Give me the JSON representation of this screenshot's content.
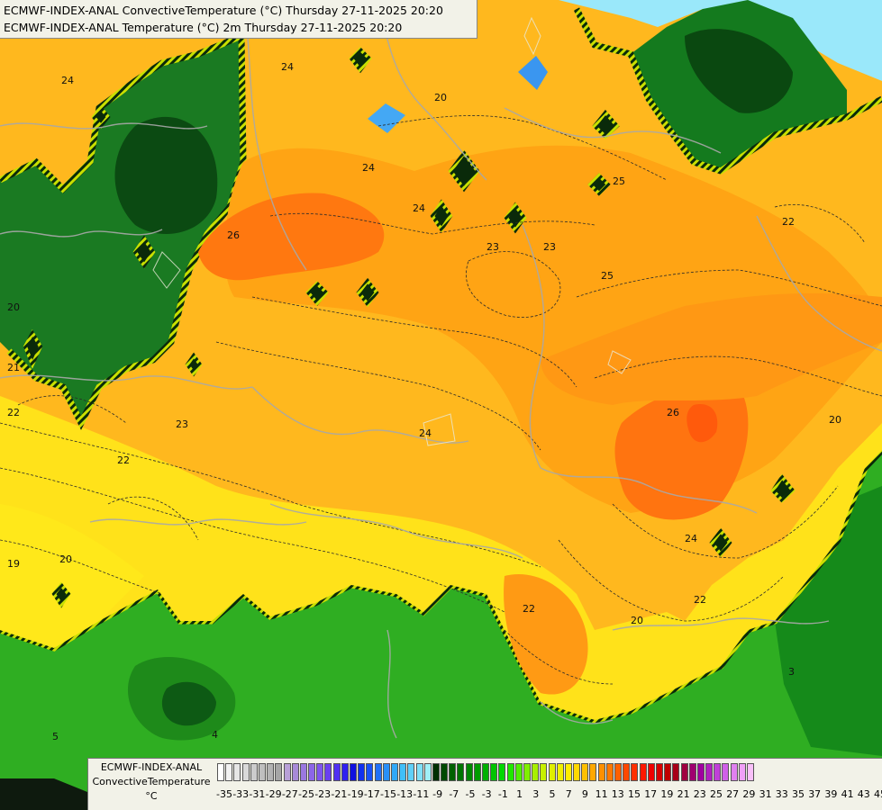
{
  "title": {
    "line1": "ECMWF-INDEX-ANAL ConvectiveTemperature (°C) Thursday 27-11-2025 20:20",
    "line2": "ECMWF-INDEX-ANAL Temperature (°C) 2m Thursday 27-11-2025 20:20"
  },
  "legend": {
    "line1": "ECMWF-INDEX-ANAL",
    "line2": "ConvectiveTemperature",
    "line3": "°C",
    "ticks": [
      "-35",
      "-33",
      "-31",
      "-29",
      "-27",
      "-25",
      "-23",
      "-21",
      "-19",
      "-17",
      "-15",
      "-13",
      "-11",
      "-9",
      "-7",
      "-5",
      "-3",
      "-1",
      "1",
      "3",
      "5",
      "7",
      "9",
      "11",
      "13",
      "15",
      "17",
      "19",
      "21",
      "23",
      "25",
      "27",
      "29",
      "31",
      "33",
      "35",
      "37",
      "39",
      "41",
      "43",
      "45"
    ],
    "colors": [
      "#ffffff",
      "#f2f2f2",
      "#e6e6e6",
      "#d9d9d9",
      "#cccccc",
      "#bfbfbf",
      "#b3b3b3",
      "#a6a6a6",
      "#b8a0d8",
      "#a88ad8",
      "#9a78e0",
      "#8c66e8",
      "#7f55ee",
      "#6a40f0",
      "#4f30f2",
      "#3020f0",
      "#1010e0",
      "#1030f0",
      "#1850f8",
      "#2070f8",
      "#2890f8",
      "#30a8f8",
      "#40bff8",
      "#60d0f8",
      "#80e0f8",
      "#a0f0f8",
      "#003000",
      "#004a00",
      "#006000",
      "#007400",
      "#008800",
      "#009c00",
      "#00b000",
      "#00c400",
      "#00d800",
      "#20e800",
      "#50f000",
      "#80f000",
      "#a8f000",
      "#c8f000",
      "#e0f000",
      "#f0f000",
      "#ffee00",
      "#ffd800",
      "#ffc000",
      "#ffa800",
      "#ff9000",
      "#ff7800",
      "#ff6000",
      "#ff4800",
      "#ff3000",
      "#ff1800",
      "#f00000",
      "#d80000",
      "#c00000",
      "#a80018",
      "#a00040",
      "#a00070",
      "#a000a0",
      "#b020c0",
      "#c040d8",
      "#d060e8",
      "#e080f0",
      "#f0a0f8",
      "#f8c0f8"
    ]
  },
  "map": {
    "contour_labels": [
      "24",
      "24",
      "20",
      "24",
      "26",
      "24",
      "23",
      "23",
      "25",
      "22",
      "20",
      "21",
      "22",
      "23",
      "22",
      "24",
      "26",
      "20",
      "19",
      "20",
      "22",
      "24",
      "22",
      "20",
      "3",
      "5",
      "4",
      "25"
    ]
  },
  "colors": {
    "dark_green": "#0e5a1a",
    "green": "#2aa81e",
    "yellow": "#ffd61a",
    "light_orange": "#ffb21a",
    "orange": "#ff9a14",
    "dark_orange": "#ff6a0e",
    "light_blue": "#8ee6f8",
    "blue": "#2f8ce8"
  }
}
